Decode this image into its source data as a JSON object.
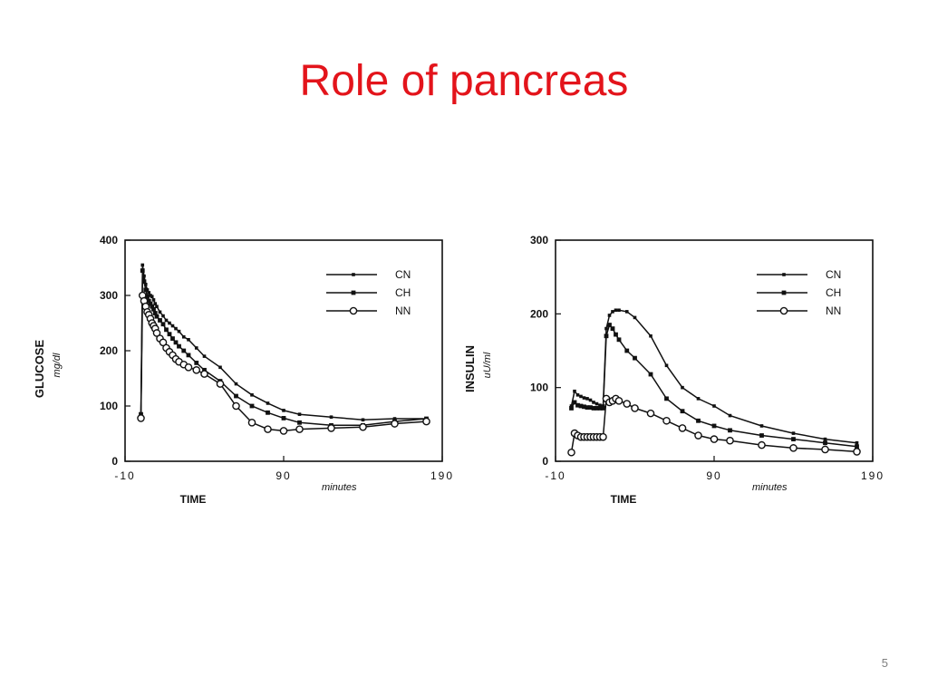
{
  "slide": {
    "title": "Role of pancreas",
    "page_number": "5"
  },
  "chart_data": [
    {
      "type": "line",
      "id": "glucose",
      "ylabel": "GLUCOSE",
      "yunit": "mg/dl",
      "xlabel": "TIME",
      "xunit": "minutes",
      "xlim": [
        -10,
        190
      ],
      "ylim": [
        0,
        400
      ],
      "xticks": [
        -10,
        90,
        190
      ],
      "xtick_labels": [
        "-10",
        "90",
        "190"
      ],
      "yticks": [
        0,
        100,
        200,
        300,
        400
      ],
      "grid": false,
      "legend_position": "top-right",
      "series": [
        {
          "name": "CN",
          "marker": "filled-small",
          "x": [
            0,
            1,
            2,
            3,
            4,
            5,
            6,
            7,
            8,
            9,
            10,
            12,
            14,
            16,
            18,
            20,
            22,
            24,
            27,
            30,
            35,
            40,
            50,
            60,
            70,
            80,
            90,
            100,
            120,
            140,
            160,
            180
          ],
          "y": [
            80,
            355,
            335,
            320,
            310,
            305,
            300,
            298,
            292,
            285,
            280,
            270,
            263,
            255,
            250,
            245,
            240,
            235,
            225,
            220,
            205,
            190,
            170,
            140,
            120,
            105,
            92,
            85,
            80,
            75,
            77,
            77
          ]
        },
        {
          "name": "CH",
          "marker": "filled",
          "x": [
            0,
            1,
            2,
            3,
            4,
            5,
            6,
            7,
            8,
            9,
            10,
            12,
            14,
            16,
            18,
            20,
            22,
            24,
            27,
            30,
            35,
            40,
            50,
            60,
            70,
            80,
            90,
            100,
            120,
            140,
            160,
            180
          ],
          "y": [
            85,
            345,
            325,
            310,
            298,
            290,
            285,
            280,
            275,
            268,
            262,
            255,
            248,
            238,
            230,
            222,
            215,
            208,
            200,
            192,
            178,
            165,
            145,
            118,
            100,
            88,
            78,
            70,
            65,
            65,
            72,
            77
          ]
        },
        {
          "name": "NN",
          "marker": "open",
          "x": [
            0,
            1,
            2,
            3,
            4,
            5,
            6,
            7,
            8,
            9,
            10,
            12,
            14,
            16,
            18,
            20,
            22,
            24,
            27,
            30,
            35,
            40,
            50,
            60,
            70,
            80,
            90,
            100,
            120,
            140,
            160,
            180
          ],
          "y": [
            78,
            300,
            290,
            280,
            270,
            265,
            258,
            250,
            245,
            240,
            232,
            222,
            215,
            205,
            198,
            192,
            185,
            180,
            175,
            170,
            165,
            158,
            140,
            100,
            70,
            58,
            55,
            58,
            60,
            62,
            68,
            72
          ]
        }
      ]
    },
    {
      "type": "line",
      "id": "insulin",
      "ylabel": "INSULIN",
      "yunit": "uU/ml",
      "xlabel": "TIME",
      "xunit": "minutes",
      "xlim": [
        -10,
        190
      ],
      "ylim": [
        0,
        300
      ],
      "xticks": [
        -10,
        90,
        190
      ],
      "xtick_labels": [
        "-10",
        "90",
        "190"
      ],
      "yticks": [
        0,
        100,
        200,
        300
      ],
      "grid": false,
      "legend_position": "top-right",
      "series": [
        {
          "name": "CN",
          "marker": "filled-small",
          "x": [
            0,
            2,
            4,
            6,
            8,
            10,
            12,
            14,
            16,
            18,
            20,
            22,
            24,
            26,
            28,
            30,
            35,
            40,
            50,
            60,
            70,
            80,
            90,
            100,
            120,
            140,
            160,
            180
          ],
          "y": [
            75,
            95,
            90,
            88,
            86,
            85,
            83,
            80,
            78,
            76,
            75,
            180,
            198,
            203,
            205,
            205,
            203,
            195,
            170,
            130,
            100,
            85,
            75,
            62,
            48,
            38,
            30,
            25
          ]
        },
        {
          "name": "CH",
          "marker": "filled",
          "x": [
            0,
            2,
            4,
            6,
            8,
            10,
            12,
            14,
            16,
            18,
            20,
            22,
            24,
            26,
            28,
            30,
            35,
            40,
            50,
            60,
            70,
            80,
            90,
            100,
            120,
            140,
            160,
            180
          ],
          "y": [
            72,
            80,
            76,
            75,
            74,
            73,
            73,
            72,
            72,
            72,
            72,
            170,
            185,
            180,
            172,
            165,
            150,
            140,
            118,
            85,
            68,
            55,
            48,
            42,
            35,
            30,
            25,
            20
          ]
        },
        {
          "name": "NN",
          "marker": "open",
          "x": [
            0,
            2,
            4,
            6,
            8,
            10,
            12,
            14,
            16,
            18,
            20,
            22,
            24,
            26,
            28,
            30,
            35,
            40,
            50,
            60,
            70,
            80,
            90,
            100,
            120,
            140,
            160,
            180
          ],
          "y": [
            12,
            38,
            35,
            33,
            33,
            33,
            33,
            33,
            33,
            33,
            33,
            85,
            80,
            82,
            85,
            82,
            78,
            72,
            65,
            55,
            45,
            35,
            30,
            28,
            22,
            18,
            16,
            13
          ]
        }
      ]
    }
  ]
}
